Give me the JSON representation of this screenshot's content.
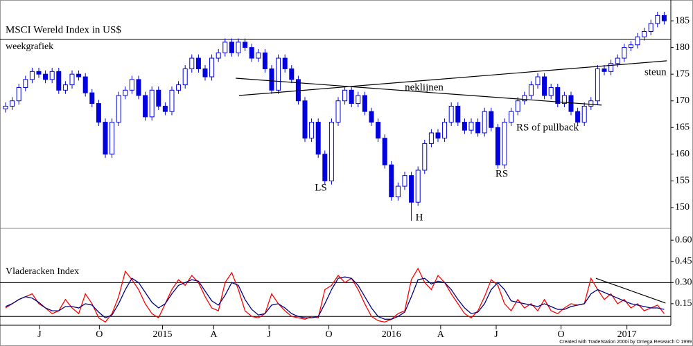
{
  "chart_data": [
    {
      "type": "candlestick",
      "title": "MSCI Wereld Index in US$",
      "subtitle": "weekgrafiek",
      "up_color": "#ffffff",
      "down_color": "#0000e0",
      "edge_color": "#0000e0",
      "xlim": [
        -0.833,
        100
      ],
      "xticks": [
        {
          "value": 5.1,
          "label": "J"
        },
        {
          "value": 14.1,
          "label": "O"
        },
        {
          "value": 23.6,
          "label": "2015"
        },
        {
          "value": 31.3,
          "label": "A"
        },
        {
          "value": 39.6,
          "label": "J"
        },
        {
          "value": 48.6,
          "label": "O"
        },
        {
          "value": 58,
          "label": "2016"
        },
        {
          "value": 65.4,
          "label": "A"
        },
        {
          "value": 73.75,
          "label": "J"
        },
        {
          "value": 83.5,
          "label": "O"
        },
        {
          "value": 93.4,
          "label": "2017"
        }
      ],
      "ylim": [
        146.1,
        188.9
      ],
      "yticks": [
        150,
        155,
        160,
        165,
        170,
        175,
        180,
        185
      ],
      "open": [
        168.5,
        169,
        170,
        172.5,
        174,
        175.5,
        175,
        174,
        175.5,
        172,
        173,
        175,
        174.5,
        171.5,
        169.5,
        166,
        160,
        166,
        171,
        172,
        174,
        171,
        167,
        172,
        169,
        168,
        172,
        173,
        176,
        178,
        176,
        174.5,
        178,
        179,
        181,
        179,
        181,
        180,
        178,
        179,
        176,
        172,
        178,
        176,
        174,
        170,
        163,
        166,
        160,
        155,
        166,
        170,
        172,
        169.5,
        171,
        168,
        166,
        163,
        158,
        152,
        154,
        156,
        151,
        157,
        162,
        164,
        163,
        166,
        169,
        166,
        164.5,
        166,
        164,
        168,
        165,
        158,
        166,
        168,
        170,
        171,
        173,
        174.5,
        171,
        172.5,
        169.5,
        171,
        168,
        166,
        169,
        170,
        176,
        175.5,
        177,
        178,
        180,
        180.5,
        182,
        183,
        184.5,
        186
      ],
      "high": [
        169.7,
        170.7,
        173.2,
        174.7,
        176.2,
        176.2,
        175.7,
        176.2,
        176.2,
        173.7,
        175.7,
        175.7,
        175.2,
        172.2,
        170.2,
        166.7,
        166.7,
        171.7,
        172.7,
        174.7,
        174.7,
        171.7,
        172.7,
        172.7,
        169.7,
        172.7,
        173.7,
        176.7,
        178.7,
        178.7,
        176.7,
        178.7,
        179.7,
        181.7,
        181.7,
        181.7,
        181.7,
        180.7,
        179.7,
        179.7,
        176.7,
        178.7,
        178.7,
        176.7,
        174.7,
        170.7,
        166.7,
        166.7,
        160.7,
        166.7,
        170.7,
        172.7,
        172.7,
        171.7,
        171.7,
        168.7,
        166.7,
        163.7,
        158.7,
        154.7,
        156.7,
        156.7,
        157.7,
        162.7,
        164.7,
        164.7,
        166.7,
        169.7,
        169.7,
        166.7,
        166.7,
        166.7,
        168.7,
        168.7,
        165.7,
        166.7,
        168.7,
        170.7,
        171.7,
        173.7,
        175.2,
        175.2,
        173.2,
        173.2,
        171.7,
        171.7,
        168.7,
        169.7,
        170.7,
        176.7,
        176.7,
        177.7,
        178.7,
        180.7,
        181.2,
        182.7,
        183.7,
        185.2,
        186.7,
        186.7
      ],
      "low": [
        167.8,
        168.3,
        169.3,
        171.8,
        173.3,
        174.3,
        173.3,
        173.3,
        171.3,
        171.3,
        172.3,
        173.8,
        170.8,
        168.8,
        165.3,
        159.3,
        159.3,
        165.3,
        170.3,
        171.3,
        170.3,
        166.3,
        166.3,
        168.3,
        167.3,
        167.3,
        171.3,
        172.3,
        175.3,
        175.3,
        173.8,
        173.8,
        177.3,
        178.3,
        178.3,
        178.3,
        179.3,
        177.3,
        177.3,
        175.3,
        171.3,
        171.3,
        175.3,
        173.3,
        169.3,
        162.3,
        162.3,
        159.3,
        154.3,
        154.3,
        165.3,
        169.3,
        168.8,
        168.8,
        167.3,
        165.3,
        162.3,
        157.3,
        151.3,
        151.3,
        153.3,
        147.5,
        150.3,
        156.3,
        161.3,
        162.3,
        162.3,
        165.3,
        165.3,
        163.8,
        163.8,
        163.3,
        163.3,
        164.3,
        157.3,
        157.3,
        165.3,
        167.3,
        169.3,
        170.3,
        172.3,
        170.3,
        170.3,
        168.8,
        168.8,
        167.3,
        165.3,
        165.3,
        168.3,
        169.3,
        174.8,
        174.8,
        176.3,
        177.3,
        179.3,
        179.8,
        181.3,
        182.3,
        183.8,
        184.3
      ],
      "close": [
        169,
        170,
        172.5,
        174,
        175.5,
        175,
        174,
        175.5,
        172,
        173,
        175,
        174.5,
        171.5,
        169.5,
        166,
        160,
        166,
        171,
        172,
        174,
        171,
        167,
        172,
        169,
        168,
        172,
        173,
        176,
        178,
        176,
        174.5,
        178,
        179,
        181,
        179,
        181,
        180,
        178,
        179,
        176,
        172,
        178,
        176,
        174,
        170,
        163,
        166,
        160,
        155,
        166,
        170,
        172,
        169.5,
        171,
        168,
        166,
        163,
        158,
        152,
        154,
        156,
        151,
        157,
        162,
        164,
        163,
        166,
        169,
        166,
        164.5,
        166,
        164,
        168,
        165,
        158,
        166,
        168,
        170,
        171,
        173,
        174.5,
        171,
        172.5,
        169.5,
        171,
        168,
        166,
        169,
        170,
        176,
        175.5,
        177,
        178,
        180,
        180.5,
        182,
        183,
        184.5,
        186,
        185
      ],
      "trendlines": [
        {
          "from": [
            34.6,
            174.24
          ],
          "to": [
            89.6,
            169.2
          ]
        },
        {
          "from": [
            35.1,
            171.0
          ],
          "to": [
            99.4,
            177.5
          ]
        }
      ],
      "annotations": [
        "LS",
        "H",
        "RS",
        "neklijnen",
        "RS of pullback",
        "steun"
      ]
    },
    {
      "type": "line",
      "title": "Vladeracken Index",
      "xlim": [
        -0.833,
        100
      ],
      "ylim": [
        0,
        0.684
      ],
      "yticks": [
        {
          "value": 0.15,
          "label": "0.15"
        },
        {
          "value": 0.3,
          "label": "0.30"
        },
        {
          "value": 0.45,
          "label": "0.45"
        },
        {
          "value": 0.6,
          "label": "0.60"
        }
      ],
      "reference_lines": [
        0.3,
        0.06
      ],
      "series": [
        {
          "color": "#ff0000",
          "values": [
            0.12,
            0.15,
            0.18,
            0.2,
            0.22,
            0.15,
            0.12,
            0.08,
            0.1,
            0.18,
            0.12,
            0.08,
            0.22,
            0.15,
            0.05,
            0.02,
            0.08,
            0.2,
            0.38,
            0.32,
            0.25,
            0.15,
            0.08,
            0.05,
            0.15,
            0.25,
            0.32,
            0.28,
            0.35,
            0.3,
            0.2,
            0.12,
            0.1,
            0.3,
            0.37,
            0.25,
            0.1,
            0.06,
            0.05,
            0.08,
            0.22,
            0.15,
            0.1,
            0.06,
            0.05,
            0.04,
            0.06,
            0.05,
            0.25,
            0.28,
            0.35,
            0.3,
            0.33,
            0.25,
            0.15,
            0.06,
            0.03,
            0.02,
            0.04,
            0.08,
            0.1,
            0.32,
            0.4,
            0.3,
            0.25,
            0.35,
            0.3,
            0.22,
            0.15,
            0.08,
            0.05,
            0.1,
            0.2,
            0.32,
            0.28,
            0.15,
            0.1,
            0.18,
            0.12,
            0.15,
            0.1,
            0.18,
            0.1,
            0.08,
            0.12,
            0.15,
            0.14,
            0.15,
            0.33,
            0.25,
            0.18,
            0.22,
            0.15,
            0.18,
            0.12,
            0.15,
            0.1,
            0.12,
            0.14,
            0.08
          ]
        },
        {
          "color": "#000080",
          "values": [
            0.13,
            0.15,
            0.18,
            0.2,
            0.19,
            0.16,
            0.12,
            0.1,
            0.1,
            0.13,
            0.13,
            0.12,
            0.15,
            0.14,
            0.09,
            0.05,
            0.07,
            0.15,
            0.25,
            0.33,
            0.3,
            0.23,
            0.16,
            0.12,
            0.15,
            0.22,
            0.28,
            0.3,
            0.32,
            0.31,
            0.24,
            0.17,
            0.14,
            0.21,
            0.3,
            0.28,
            0.18,
            0.11,
            0.07,
            0.08,
            0.14,
            0.15,
            0.12,
            0.08,
            0.06,
            0.05,
            0.05,
            0.06,
            0.15,
            0.25,
            0.33,
            0.34,
            0.33,
            0.28,
            0.2,
            0.12,
            0.06,
            0.04,
            0.04,
            0.06,
            0.09,
            0.2,
            0.32,
            0.33,
            0.29,
            0.31,
            0.3,
            0.25,
            0.18,
            0.12,
            0.08,
            0.09,
            0.15,
            0.25,
            0.3,
            0.25,
            0.17,
            0.16,
            0.15,
            0.14,
            0.13,
            0.15,
            0.13,
            0.11,
            0.11,
            0.13,
            0.14,
            0.15,
            0.22,
            0.25,
            0.23,
            0.21,
            0.19,
            0.17,
            0.15,
            0.14,
            0.13,
            0.12,
            0.12,
            0.11
          ]
        }
      ],
      "trendlines": [
        {
          "from": [
            88.75,
            0.33
          ],
          "to": [
            99.2,
            0.155
          ]
        }
      ]
    }
  ],
  "footer": "Created with TradeStation 2000i by Omega Research © 1999"
}
